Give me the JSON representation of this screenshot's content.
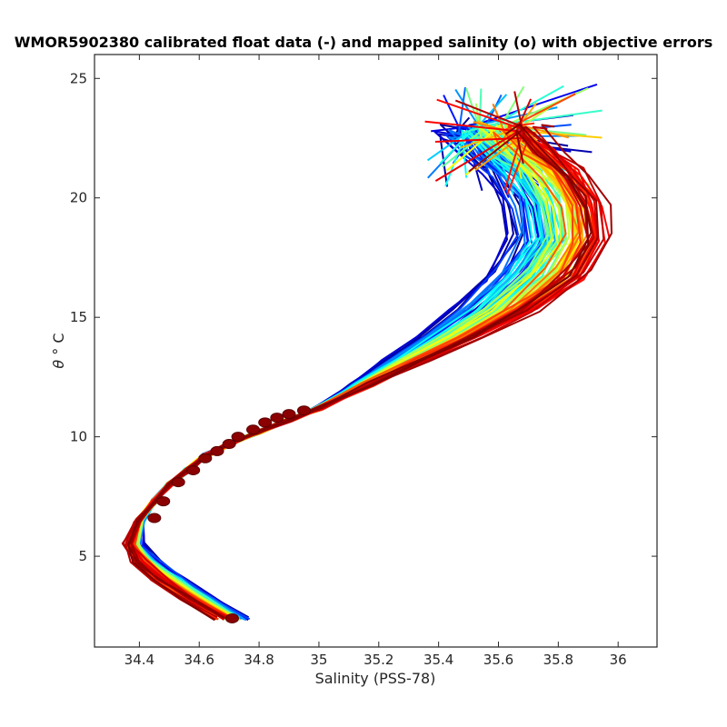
{
  "chart_data": {
    "type": "line",
    "title": "WMOR5902380 calibrated float data (-) and mapped salinity (o) with objective errors",
    "xlabel": "Salinity (PSS-78)",
    "ylabel_symbol": "θ",
    "ylabel_unit": "° C",
    "xlim": [
      34.25,
      36.13
    ],
    "ylim": [
      1.2,
      26.0
    ],
    "xticks": [
      34.4,
      34.6,
      34.8,
      35.0,
      35.2,
      35.4,
      35.6,
      35.8,
      36.0
    ],
    "xtick_labels": [
      "34.4",
      "34.6",
      "34.8",
      "35",
      "35.2",
      "35.4",
      "35.6",
      "35.8",
      "36"
    ],
    "yticks": [
      5,
      10,
      15,
      20,
      25
    ],
    "ytick_labels": [
      "5",
      "10",
      "15",
      "20",
      "25"
    ],
    "grid": false,
    "colormap": [
      "#00008f",
      "#0000ff",
      "#0080ff",
      "#00ffff",
      "#80ff80",
      "#ffff00",
      "#ff8000",
      "#ff0000",
      "#800000"
    ],
    "series_description": "Many float profiles colored by profile number (jet colormap, blue early to dark red late)",
    "mean_profile": {
      "s": [
        34.71,
        34.6,
        34.5,
        34.42,
        34.38,
        34.4,
        34.45,
        34.5,
        34.56,
        34.62,
        34.7,
        34.8,
        34.9,
        35.0,
        35.15,
        35.3,
        35.45,
        35.6,
        35.75,
        35.82,
        35.8,
        35.74,
        35.65,
        35.58,
        35.55
      ],
      "t": [
        2.4,
        3.2,
        4.0,
        4.8,
        5.5,
        6.5,
        7.3,
        8.0,
        8.6,
        9.2,
        9.7,
        10.2,
        10.7,
        11.2,
        12.2,
        13.2,
        14.2,
        15.3,
        16.8,
        18.3,
        19.8,
        21.0,
        22.0,
        22.8,
        23.5
      ]
    },
    "mapped_points": {
      "s": [
        34.71,
        34.45,
        34.48,
        34.53,
        34.58,
        34.62,
        34.66,
        34.7,
        34.73,
        34.78,
        34.82,
        34.86,
        34.9,
        34.95
      ],
      "t": [
        2.4,
        6.6,
        7.3,
        8.1,
        8.6,
        9.1,
        9.4,
        9.7,
        10.0,
        10.3,
        10.6,
        10.8,
        10.95,
        11.1
      ]
    }
  }
}
